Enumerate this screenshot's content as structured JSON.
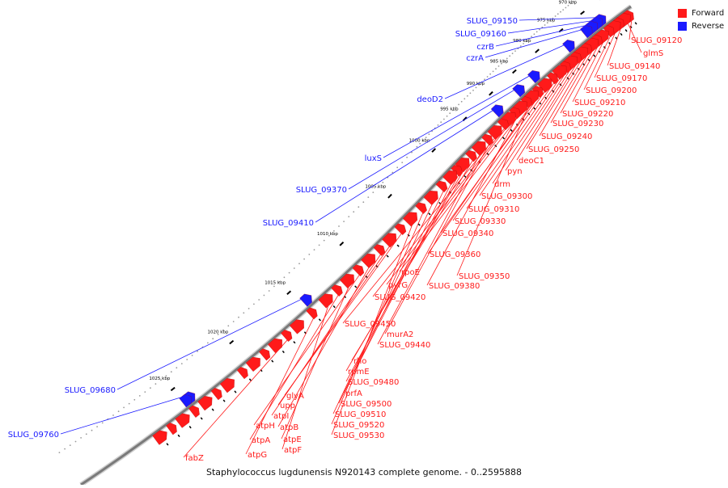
{
  "caption": "Staphylococcus lugdunensis N920143 complete genome. - 0..2595888",
  "legend": [
    {
      "label": "Forward",
      "color": "#ff1a1a"
    },
    {
      "label": "Reverse",
      "color": "#1a1aff"
    }
  ],
  "colors": {
    "forward": "#ff1a1a",
    "reverse": "#1a1aff",
    "backbone": "#8a8a8a"
  },
  "ticks": [
    "965 kbp",
    "970 kbp",
    "975 kbp",
    "980 kbp",
    "985 kbp",
    "990 kbp",
    "995 kbp",
    "1000 kbp",
    "1005 kbp",
    "1010 kbp",
    "1015 kbp",
    "1020 kbp",
    "1025 kbp"
  ],
  "forward_labels": [
    "SLUG_09120",
    "glmS",
    "SLUG_09140",
    "SLUG_09170",
    "SLUG_09200",
    "SLUG_09210",
    "SLUG_09220",
    "SLUG_09230",
    "SLUG_09240",
    "SLUG_09250",
    "deoC1",
    "pyn",
    "drm",
    "SLUG_09300",
    "SLUG_09310",
    "SLUG_09330",
    "SLUG_09340",
    "SLUG_09360",
    "SLUG_09350",
    "rpoE",
    "SLUG_09380",
    "pyrG",
    "SLUG_09420",
    "SLUG_09450",
    "murA2",
    "SLUG_09440",
    "rho",
    "rpmE",
    "SLUG_09480",
    "prfA",
    "SLUG_09500",
    "SLUG_09510",
    "SLUG_09520",
    "SLUG_09530",
    "glyA",
    "upp",
    "atpI",
    "atpB",
    "atpH",
    "atpE",
    "atpA",
    "atpF",
    "atpG",
    "fabZ"
  ],
  "reverse_labels": [
    "SLUG_09150",
    "SLUG_09160",
    "czrB",
    "czrA",
    "deoD2",
    "luxS",
    "SLUG_09370",
    "SLUG_09410",
    "SLUG_09680",
    "SLUG_09760"
  ]
}
